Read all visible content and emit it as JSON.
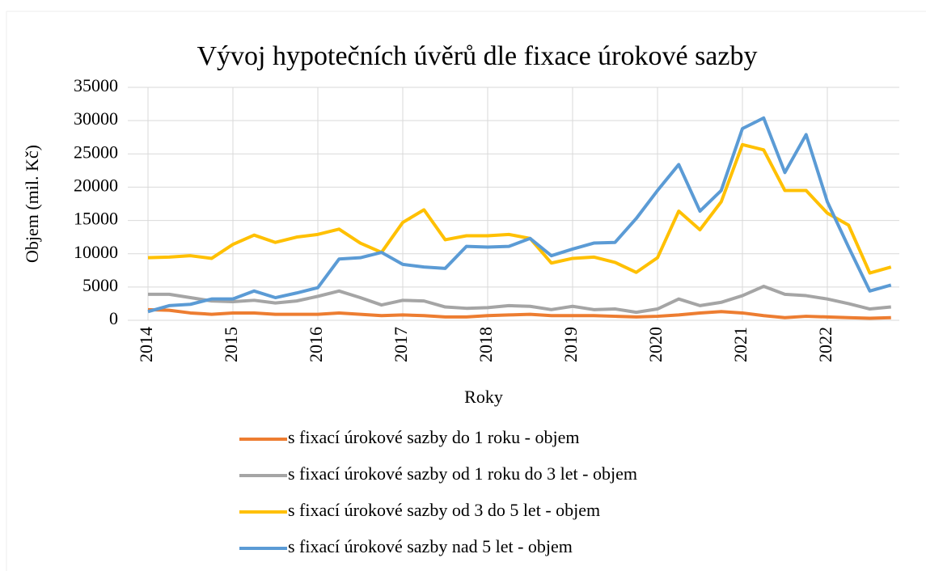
{
  "chart_data": {
    "type": "line",
    "title": "Vývoj hypotečních úvěrů dle fixace úrokové sazby",
    "x_label": "Roky",
    "y_label": "Objem (mil. Kč)",
    "categories": [
      "2014",
      null,
      null,
      null,
      "2015",
      null,
      null,
      null,
      "2016",
      null,
      null,
      null,
      "2017",
      null,
      null,
      null,
      "2018",
      null,
      null,
      null,
      "2019",
      null,
      null,
      null,
      "2020",
      null,
      null,
      null,
      "2021",
      null,
      null,
      null,
      "2022",
      null,
      null,
      null
    ],
    "ylim": [
      0,
      35000
    ],
    "yticks": [
      0,
      5000,
      10000,
      15000,
      20000,
      25000,
      30000,
      35000
    ],
    "grid": true,
    "series": [
      {
        "name": "s fixací úrokové sazby do 1 roku - objem",
        "color": "#ed7d31",
        "values": [
          1600,
          1500,
          1100,
          900,
          1100,
          1100,
          900,
          900,
          900,
          1100,
          900,
          700,
          800,
          700,
          500,
          500,
          700,
          800,
          900,
          700,
          700,
          700,
          600,
          500,
          600,
          800,
          1100,
          1300,
          1100,
          700,
          400,
          600,
          500,
          400,
          300,
          400
        ]
      },
      {
        "name": "s fixací úrokové sazby od 1 roku do 3 let - objem",
        "color": "#a5a5a5",
        "values": [
          3900,
          3900,
          3400,
          2900,
          2800,
          3000,
          2600,
          2900,
          3600,
          4400,
          3400,
          2300,
          3000,
          2900,
          2000,
          1800,
          1900,
          2200,
          2100,
          1600,
          2100,
          1600,
          1700,
          1200,
          1700,
          3200,
          2200,
          2700,
          3700,
          5100,
          3900,
          3700,
          3200,
          2500,
          1700,
          2000
        ]
      },
      {
        "name": "s fixací úrokové sazby od 3 do 5 let - objem",
        "color": "#ffc000",
        "values": [
          9400,
          9500,
          9700,
          9300,
          11400,
          12800,
          11700,
          12500,
          12900,
          13700,
          11600,
          10200,
          14700,
          16600,
          12100,
          12700,
          12700,
          12900,
          12300,
          8600,
          9300,
          9500,
          8700,
          7200,
          9400,
          16400,
          13600,
          17800,
          26400,
          25600,
          19500,
          19500,
          16100,
          14300,
          7100,
          8000
        ]
      },
      {
        "name": "s fixací úrokové sazby nad 5 let - objem",
        "color": "#5b9bd5",
        "values": [
          1300,
          2200,
          2400,
          3200,
          3200,
          4400,
          3400,
          4100,
          4900,
          9200,
          9400,
          10200,
          8400,
          8000,
          7800,
          11100,
          11000,
          11100,
          12300,
          9700,
          10700,
          11600,
          11700,
          15300,
          19500,
          23400,
          16400,
          19500,
          28800,
          30400,
          22200,
          27900,
          17800,
          11000,
          4400,
          5300
        ]
      }
    ]
  }
}
